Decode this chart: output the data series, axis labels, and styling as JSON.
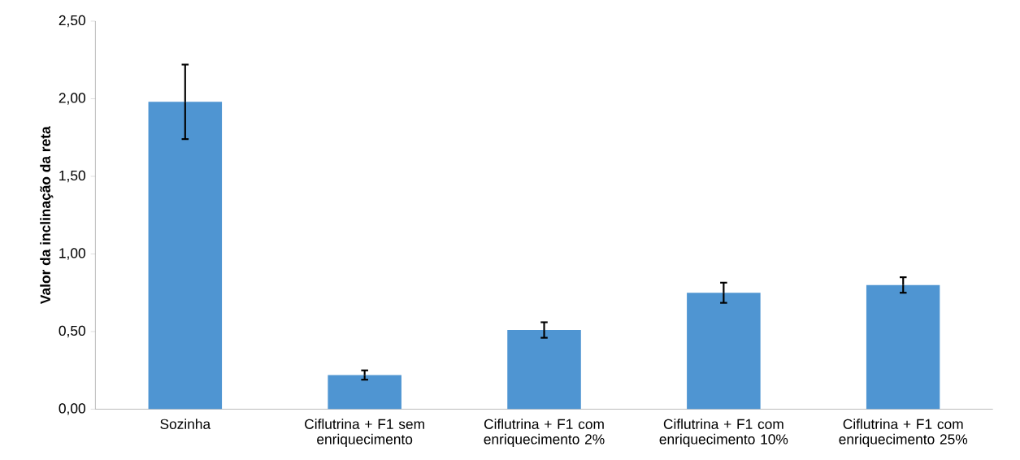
{
  "chart_data": {
    "type": "bar",
    "ylabel": "Valor da inclinação da reta",
    "categories": [
      "Sozinha",
      "Ciflutrina + F1 sem enriquecimento",
      "Ciflutrina + F1 com enriquecimento 2%",
      "Ciflutrina + F1 com enriquecimento 10%",
      "Ciflutrina + F1 com enriquecimento 25%"
    ],
    "values": [
      1.98,
      0.22,
      0.51,
      0.75,
      0.8
    ],
    "errors": [
      0.24,
      0.03,
      0.05,
      0.065,
      0.05
    ],
    "color": "#4f95d2",
    "ylim": [
      0,
      2.5
    ],
    "yticks": [
      {
        "value": 0,
        "label": "0,00"
      },
      {
        "value": 0.5,
        "label": "0,50"
      },
      {
        "value": 1.0,
        "label": "1,00"
      },
      {
        "value": 1.5,
        "label": "1,50"
      },
      {
        "value": 2.0,
        "label": "2,00"
      },
      {
        "value": 2.5,
        "label": "2,50"
      }
    ]
  }
}
